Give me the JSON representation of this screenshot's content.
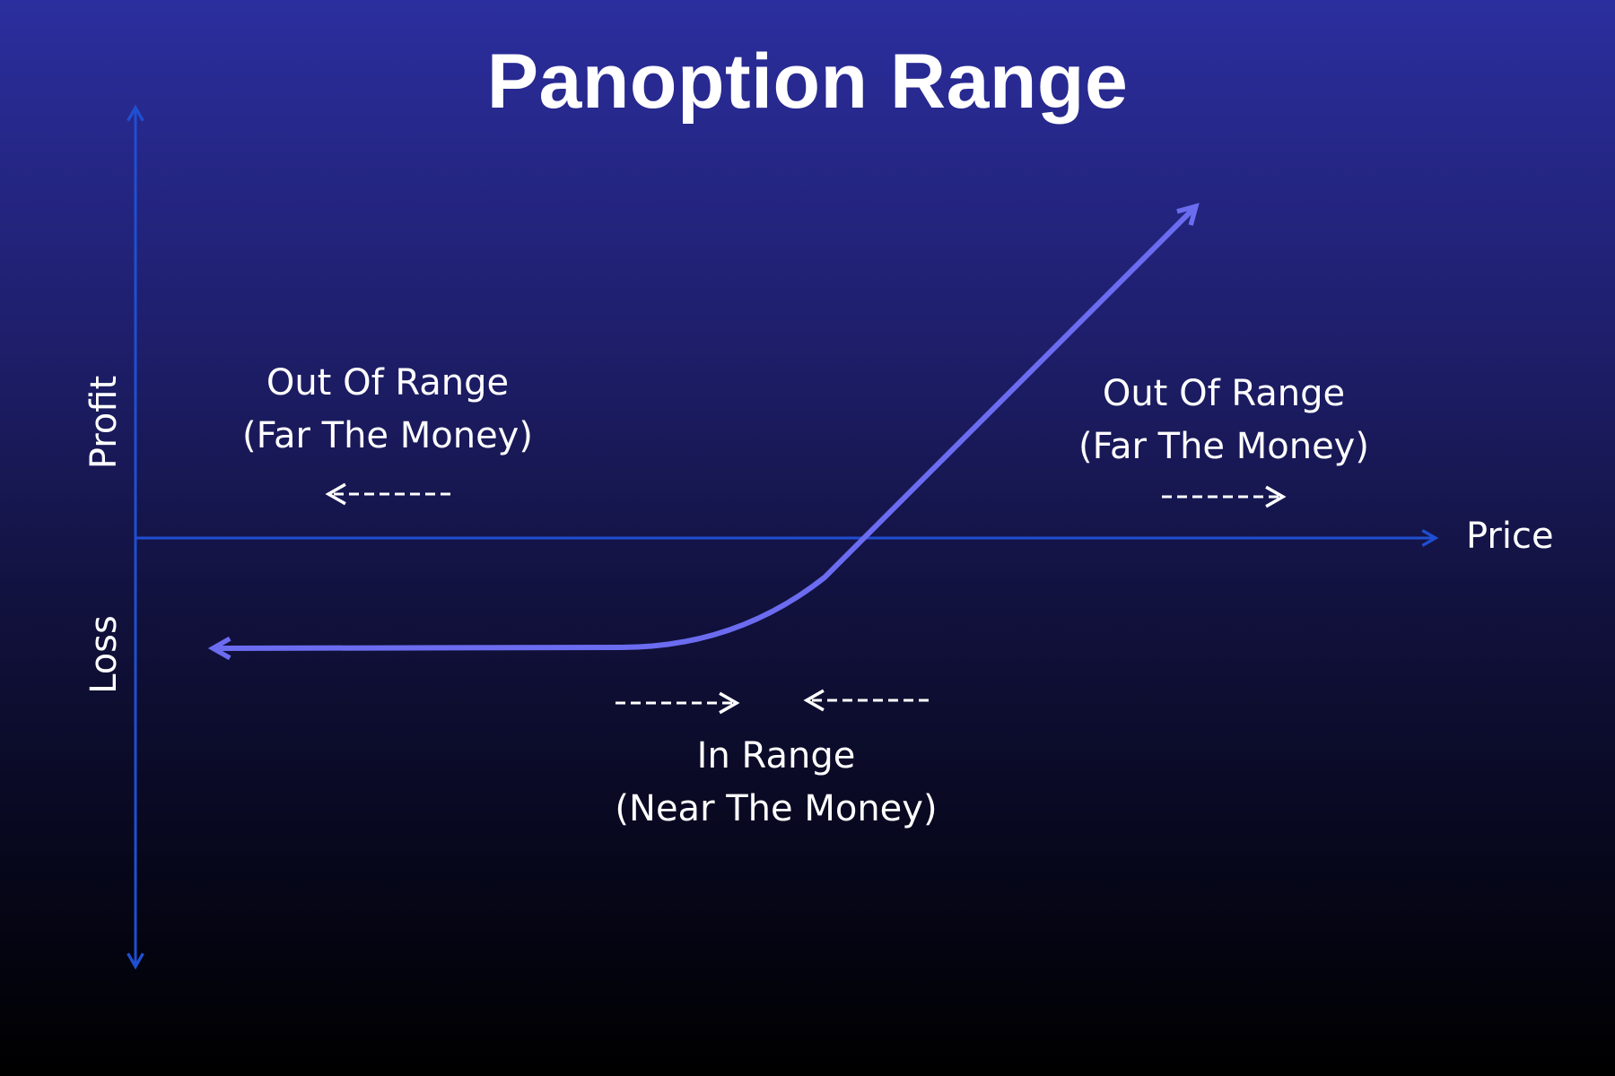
{
  "title": "Panoption Range",
  "axes": {
    "x_label": "Price",
    "y_label_top": "Profit",
    "y_label_bottom": "Loss"
  },
  "regions": {
    "left": {
      "line1": "Out Of Range",
      "line2": "(Far The Money)"
    },
    "right": {
      "line1": "Out Of Range",
      "line2": "(Far The Money)"
    },
    "center": {
      "line1": "In Range",
      "line2": "(Near The Money)"
    }
  },
  "colors": {
    "axis": "#1f4fd1",
    "payoff_curve": "#6b6cf0",
    "text": "#ffffff",
    "bg_top": "#2b2e9e",
    "bg_bottom": "#000000"
  }
}
